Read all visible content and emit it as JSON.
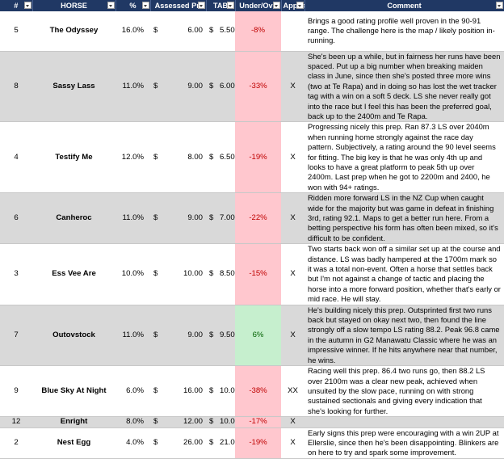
{
  "headers": {
    "num": "#",
    "horse": "HORSE",
    "pct": "%",
    "assessed": "Assessed Pri",
    "tab": "TAB",
    "underover": "Under/Ove",
    "appeal": "Appea",
    "comment": "Comment"
  },
  "rows": [
    {
      "num": "5",
      "horse": "The Odyssey",
      "pct": "16.0%",
      "cur1": "$",
      "assessed": "6.00",
      "cur2": "$",
      "tab": "5.50",
      "underover": "-8%",
      "uo_sign": "neg",
      "appeal": "",
      "comment": "Brings a good rating profile well proven in the 90-91 range. The challenge here is the map / likely position in-running."
    },
    {
      "num": "8",
      "horse": "Sassy Lass",
      "pct": "11.0%",
      "cur1": "$",
      "assessed": "9.00",
      "cur2": "$",
      "tab": "6.00",
      "underover": "-33%",
      "uo_sign": "neg",
      "appeal": "X",
      "comment": "She's been up a while, but in fairness her runs have been spaced. Put up a big number when breaking maiden class in June, since then she's posted three more wins (two at Te Rapa) and in doing so has lost the wet tracker tag with a win on a soft 5 deck. LS she never really got into the race but I feel this has been the preferred goal, back up to the 2400m and Te Rapa."
    },
    {
      "num": "4",
      "horse": "Testify Me",
      "pct": "12.0%",
      "cur1": "$",
      "assessed": "8.00",
      "cur2": "$",
      "tab": "6.50",
      "underover": "-19%",
      "uo_sign": "neg",
      "appeal": "X",
      "comment": "Progressing nicely this prep. Ran 87.3 LS over 2040m when running home strongly against the race day pattern. Subjectively, a rating around the 90 level seems for fitting. The big key is that he was only 4th up and looks to have a great platform to peak 5th up over 2400m. Last prep when he got to 2200m and 2400, he won with 94+ ratings."
    },
    {
      "num": "6",
      "horse": "Canheroc",
      "pct": "11.0%",
      "cur1": "$",
      "assessed": "9.00",
      "cur2": "$",
      "tab": "7.00",
      "underover": "-22%",
      "uo_sign": "neg",
      "appeal": "X",
      "comment": "Ridden more forward LS in the NZ Cup when caught wide for the majority but was game in defeat in finishing 3rd, rating 92.1. Maps to get a better run here. From a betting perspective his form has often been mixed, so it's difficult to be confident."
    },
    {
      "num": "3",
      "horse": "Ess Vee Are",
      "pct": "10.0%",
      "cur1": "$",
      "assessed": "10.00",
      "cur2": "$",
      "tab": "8.50",
      "underover": "-15%",
      "uo_sign": "neg",
      "appeal": "X",
      "comment": "Two starts back won off a similar set up at the course and distance. LS was badly hampered at the 1700m mark so it was a total non-event. Often a horse that settles back but I'm not against a change of tactic and placing the horse into a more forward position, whether that's early or mid race. He will stay."
    },
    {
      "num": "7",
      "horse": "Outovstock",
      "pct": "11.0%",
      "cur1": "$",
      "assessed": "9.00",
      "cur2": "$",
      "tab": "9.50",
      "underover": "6%",
      "uo_sign": "pos",
      "appeal": "X",
      "comment": "He's building nicely this prep. Outsprinted first two runs back but stayed on okay next two, then found the line strongly off a slow tempo LS rating 88.2. Peak 96.8 came in the autumn in G2 Manawatu Classic where he was an impressive winner. If he hits anywhere near that number, he wins."
    },
    {
      "num": "9",
      "horse": "Blue Sky At Night",
      "pct": "6.0%",
      "cur1": "$",
      "assessed": "16.00",
      "cur2": "$",
      "tab": "10.00",
      "underover": "-38%",
      "uo_sign": "neg",
      "appeal": "XX",
      "comment": "Racing well this prep. 86.4 two runs go, then 88.2 LS over 2100m was a clear new peak, achieved when unsuited by the slow pace, running on with strong sustained sectionals and giving every indication that she's looking for further."
    },
    {
      "num": "12",
      "horse": "Enright",
      "pct": "8.0%",
      "cur1": "$",
      "assessed": "12.00",
      "cur2": "$",
      "tab": "10.00",
      "underover": "-17%",
      "uo_sign": "neg",
      "appeal": "X",
      "comment": ""
    },
    {
      "num": "2",
      "horse": "Nest Egg",
      "pct": "4.0%",
      "cur1": "$",
      "assessed": "26.00",
      "cur2": "$",
      "tab": "21.00",
      "underover": "-19%",
      "uo_sign": "neg",
      "appeal": "X",
      "comment": "Early signs this prep were encouraging with a win 2UP at Ellerslie, since then he's been disappointing. Blinkers are on here to try and spark some improvement."
    }
  ]
}
